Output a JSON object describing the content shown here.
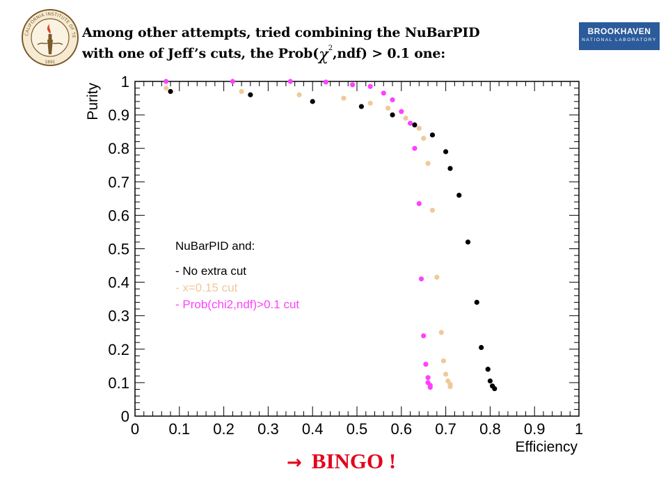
{
  "slide": {
    "title_part1": "Among other attempts, tried combining the NuBarPID",
    "title_part2_pre": "with one of Jeff’s cuts, the Prob(",
    "title_chi": "χ",
    "title_chi_sup": "2",
    "title_part2_post": ",ndf) > 0.1 one:",
    "bingo_arrow": "→",
    "bingo_text": "BINGO !"
  },
  "logos": {
    "caltech": {
      "text": "CALIFORNIA INSTITUTE OF TECHNOLOGY",
      "year": "1891"
    },
    "brookhaven": {
      "main": "BROOKHAVEN",
      "sub": "NATIONAL LABORATORY"
    }
  },
  "legend": {
    "heading": "NuBarPID and:",
    "entries": [
      {
        "label": "- No extra cut",
        "color": "#000000"
      },
      {
        "label": "- x=0.15 cut",
        "color": "#f0c999"
      },
      {
        "label": "- Prob(chi2,ndf)>0.1 cut",
        "color": "#ff40ff"
      }
    ]
  },
  "chart_data": {
    "type": "scatter",
    "xlabel": "Efficiency",
    "ylabel": "Purity",
    "xlim": [
      0,
      1
    ],
    "ylim": [
      0,
      1
    ],
    "x_ticks": [
      "0",
      "0.1",
      "0.2",
      "0.3",
      "0.4",
      "0.5",
      "0.6",
      "0.7",
      "0.8",
      "0.9",
      "1"
    ],
    "y_ticks": [
      "0",
      "0.1",
      "0.2",
      "0.3",
      "0.4",
      "0.5",
      "0.6",
      "0.7",
      "0.8",
      "0.9",
      "1"
    ],
    "grid": false,
    "series": [
      {
        "name": "- No extra cut",
        "color": "#000000",
        "points": [
          [
            0.08,
            0.97
          ],
          [
            0.26,
            0.96
          ],
          [
            0.4,
            0.94
          ],
          [
            0.51,
            0.925
          ],
          [
            0.58,
            0.9
          ],
          [
            0.63,
            0.87
          ],
          [
            0.67,
            0.84
          ],
          [
            0.7,
            0.79
          ],
          [
            0.71,
            0.74
          ],
          [
            0.73,
            0.66
          ],
          [
            0.75,
            0.52
          ],
          [
            0.77,
            0.34
          ],
          [
            0.78,
            0.205
          ],
          [
            0.795,
            0.14
          ],
          [
            0.8,
            0.105
          ],
          [
            0.805,
            0.09
          ],
          [
            0.81,
            0.082
          ]
        ]
      },
      {
        "name": "- x=0.15 cut",
        "color": "#f0c999",
        "points": [
          [
            0.07,
            0.98
          ],
          [
            0.24,
            0.97
          ],
          [
            0.37,
            0.96
          ],
          [
            0.47,
            0.95
          ],
          [
            0.53,
            0.935
          ],
          [
            0.57,
            0.92
          ],
          [
            0.61,
            0.89
          ],
          [
            0.64,
            0.86
          ],
          [
            0.65,
            0.83
          ],
          [
            0.66,
            0.755
          ],
          [
            0.67,
            0.615
          ],
          [
            0.68,
            0.415
          ],
          [
            0.69,
            0.25
          ],
          [
            0.695,
            0.165
          ],
          [
            0.7,
            0.125
          ],
          [
            0.705,
            0.105
          ],
          [
            0.71,
            0.095
          ],
          [
            0.71,
            0.088
          ]
        ]
      },
      {
        "name": "- Prob(chi2,ndf)>0.1 cut",
        "color": "#ff40ff",
        "points": [
          [
            0.07,
            1.0
          ],
          [
            0.22,
            1.0
          ],
          [
            0.35,
            1.0
          ],
          [
            0.43,
            0.998
          ],
          [
            0.49,
            0.99
          ],
          [
            0.53,
            0.985
          ],
          [
            0.56,
            0.965
          ],
          [
            0.58,
            0.945
          ],
          [
            0.6,
            0.91
          ],
          [
            0.62,
            0.875
          ],
          [
            0.63,
            0.8
          ],
          [
            0.64,
            0.635
          ],
          [
            0.645,
            0.41
          ],
          [
            0.65,
            0.24
          ],
          [
            0.655,
            0.155
          ],
          [
            0.66,
            0.115
          ],
          [
            0.66,
            0.1
          ],
          [
            0.665,
            0.092
          ],
          [
            0.665,
            0.086
          ]
        ]
      }
    ]
  }
}
